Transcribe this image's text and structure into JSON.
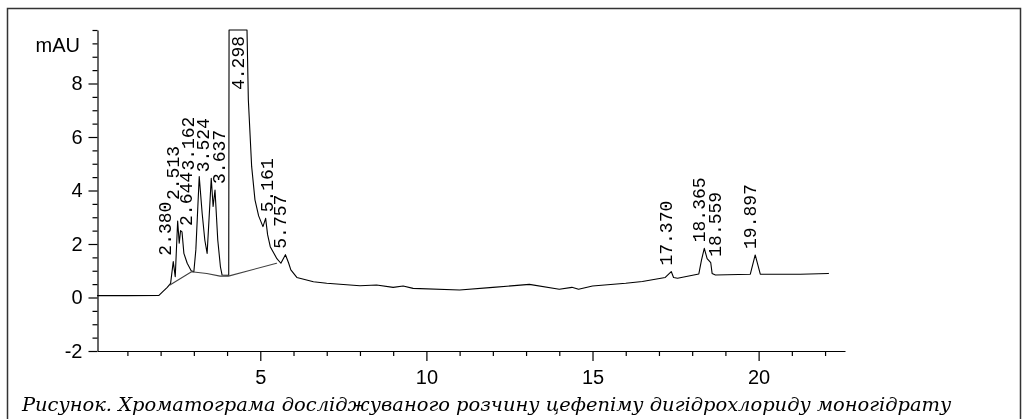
{
  "chart_data": {
    "type": "line",
    "ylabel": "mAU",
    "xlim": [
      0.1,
      22.6
    ],
    "ylim": [
      -2,
      10
    ],
    "xticks": [
      {
        "value": 1,
        "label": null
      },
      {
        "value": 2,
        "label": null
      },
      {
        "value": 3,
        "label": null
      },
      {
        "value": 4,
        "label": null
      },
      5,
      {
        "value": 6,
        "label": null
      },
      {
        "value": 7,
        "label": null
      },
      {
        "value": 8,
        "label": null
      },
      {
        "value": 9,
        "label": null
      },
      10,
      {
        "value": 11,
        "label": null
      },
      {
        "value": 12,
        "label": null
      },
      {
        "value": 13,
        "label": null
      },
      {
        "value": 14,
        "label": null
      },
      15,
      {
        "value": 16,
        "label": null
      },
      {
        "value": 17,
        "label": null
      },
      {
        "value": 18,
        "label": null
      },
      {
        "value": 19,
        "label": null
      },
      20,
      {
        "value": 21,
        "label": null
      },
      {
        "value": 22,
        "label": null
      }
    ],
    "yticks": [
      -2,
      {
        "value": -1.5,
        "label": null
      },
      {
        "value": -1,
        "label": null
      },
      {
        "value": -0.5,
        "label": null
      },
      0,
      {
        "value": 0.5,
        "label": null
      },
      {
        "value": 1,
        "label": null
      },
      {
        "value": 1.5,
        "label": null
      },
      2,
      {
        "value": 2.5,
        "label": null
      },
      {
        "value": 3,
        "label": null
      },
      {
        "value": 3.5,
        "label": null
      },
      4,
      {
        "value": 4.5,
        "label": null
      },
      {
        "value": 5,
        "label": null
      },
      {
        "value": 5.5,
        "label": null
      },
      6,
      {
        "value": 6.5,
        "label": null
      },
      {
        "value": 7,
        "label": null
      },
      {
        "value": 7.5,
        "label": null
      },
      8,
      {
        "value": 8.5,
        "label": null
      },
      {
        "value": 9,
        "label": null
      },
      {
        "value": 9.5,
        "label": null
      },
      {
        "value": 10,
        "label": null
      }
    ],
    "series": [
      {
        "color": "#000000",
        "x": [
          0.1,
          1.0,
          1.95,
          2.05,
          2.2,
          2.3,
          2.38,
          2.44,
          2.513,
          2.56,
          2.6,
          2.644,
          2.7,
          2.8,
          2.92,
          3.0,
          3.06,
          3.162,
          3.25,
          3.33,
          3.4,
          3.46,
          3.524,
          3.58,
          3.637,
          3.72,
          3.8,
          3.85,
          4.05,
          4.06,
          4.298,
          4.6,
          4.64,
          4.74,
          4.84,
          4.95,
          5.08,
          5.161,
          5.22,
          5.3,
          5.5,
          5.62,
          5.757,
          5.85,
          5.92,
          6.1,
          6.6,
          7.0,
          8.0,
          8.5,
          9.0,
          9.3,
          9.6,
          11.0,
          12.0,
          13.1,
          14.0,
          14.38,
          14.58,
          15.0,
          16.0,
          16.5,
          17.19,
          17.37,
          17.44,
          17.56,
          18.2,
          18.28,
          18.365,
          18.45,
          18.559,
          18.6,
          18.7,
          19.75,
          19.897,
          20.05,
          21.25,
          22.1
        ],
        "values": [
          0.07,
          0.07,
          0.08,
          0.2,
          0.38,
          0.53,
          1.34,
          0.78,
          2.86,
          2.03,
          2.5,
          2.45,
          1.65,
          1.28,
          1.0,
          0.96,
          1.78,
          4.52,
          3.15,
          2.15,
          1.65,
          3.0,
          4.46,
          3.4,
          4.02,
          2.15,
          1.15,
          0.84,
          0.83,
          10,
          10,
          10,
          7.4,
          4.9,
          3.65,
          3.05,
          2.65,
          2.96,
          2.35,
          1.9,
          1.45,
          1.28,
          1.6,
          1.3,
          1.03,
          0.75,
          0.59,
          0.53,
          0.44,
          0.47,
          0.38,
          0.43,
          0.34,
          0.28,
          0.38,
          0.49,
          0.31,
          0.38,
          0.31,
          0.43,
          0.53,
          0.6,
          0.75,
          0.97,
          0.75,
          0.72,
          0.88,
          1.4,
          1.84,
          1.45,
          1.3,
          0.9,
          0.84,
          0.87,
          1.59,
          0.87,
          0.87,
          0.9
        ]
      },
      {
        "color": "#404040",
        "x": [
          2.28,
          2.93,
          3.39,
          3.79,
          4.04,
          5.49
        ],
        "values": [
          0.47,
          0.96,
          0.9,
          0.8,
          0.8,
          1.28
        ]
      }
    ],
    "annotations": [
      {
        "text": "2.380",
        "x": 2.38,
        "y": 1.34
      },
      {
        "text": "2.513",
        "x": 2.513,
        "y": 2.86
      },
      {
        "text": "2.644",
        "x": 2.644,
        "y": 2.45
      },
      {
        "text": "3.162",
        "x": 3.162,
        "y": 4.52
      },
      {
        "text": "3.524",
        "x": 3.524,
        "y": 4.46
      },
      {
        "text": "3.637",
        "x": 3.637,
        "y": 4.02
      },
      {
        "text": "4.298",
        "x": 4.298,
        "y": 10
      },
      {
        "text": "5.161",
        "x": 5.161,
        "y": 2.96
      },
      {
        "text": "5.757",
        "x": 5.757,
        "y": 1.6
      },
      {
        "text": "17.370",
        "x": 17.37,
        "y": 0.97
      },
      {
        "text": "18.365",
        "x": 18.365,
        "y": 1.84
      },
      {
        "text": "18.559",
        "x": 18.559,
        "y": 1.3
      },
      {
        "text": "19.897",
        "x": 19.897,
        "y": 1.59
      },
      "Рисунок. Хроматограма досліджуваного розчину цефепіму дигідрохлориду моногідрату"
    ]
  }
}
